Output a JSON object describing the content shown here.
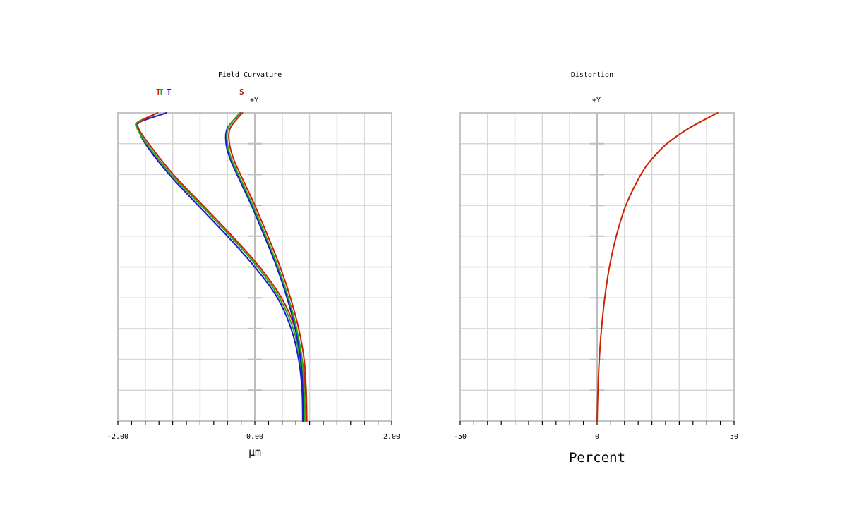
{
  "chart_data": [
    {
      "type": "line",
      "title": "Field Curvature",
      "xlabel": "µm",
      "ylabel": "+Y",
      "xlim": [
        -2.0,
        2.0
      ],
      "ylim": [
        0,
        1
      ],
      "x_tick_labels": [
        "-2.00",
        "0.00",
        "2.00"
      ],
      "grid": true,
      "legend": {
        "position": "top",
        "entries": [
          {
            "label": "T",
            "color": "#cc2200"
          },
          {
            "label": "T",
            "color": "#22aa22"
          },
          {
            "label": "T",
            "color": "#1a1acc"
          },
          {
            "label": "S",
            "color": "#aa1111"
          }
        ]
      },
      "series": [
        {
          "color": "#1a1acc",
          "y": [
            0,
            0.1,
            0.2,
            0.3,
            0.4,
            0.5,
            0.6,
            0.7,
            0.8,
            0.9,
            0.95,
            0.97,
            1.0
          ],
          "x": [
            0.7,
            0.69,
            0.64,
            0.53,
            0.33,
            0.0,
            -0.4,
            -0.83,
            -1.25,
            -1.6,
            -1.7,
            -1.68,
            -1.29
          ]
        },
        {
          "color": "#22aa22",
          "y": [
            0,
            0.1,
            0.2,
            0.3,
            0.4,
            0.5,
            0.6,
            0.7,
            0.8,
            0.9,
            0.95,
            0.97,
            1.0
          ],
          "x": [
            0.72,
            0.71,
            0.66,
            0.56,
            0.36,
            0.04,
            -0.36,
            -0.79,
            -1.22,
            -1.58,
            -1.72,
            -1.71,
            -1.42
          ]
        },
        {
          "color": "#cc2200",
          "y": [
            0,
            0.1,
            0.2,
            0.3,
            0.4,
            0.5,
            0.6,
            0.7,
            0.8,
            0.9,
            0.95,
            0.97,
            1.0
          ],
          "x": [
            0.75,
            0.74,
            0.69,
            0.59,
            0.39,
            0.07,
            -0.33,
            -0.76,
            -1.19,
            -1.55,
            -1.7,
            -1.68,
            -1.42
          ]
        },
        {
          "color": "#1a1acc",
          "y": [
            0,
            0.1,
            0.2,
            0.3,
            0.4,
            0.5,
            0.6,
            0.7,
            0.8,
            0.85,
            0.9,
            0.95,
            1.0
          ],
          "x": [
            0.71,
            0.7,
            0.67,
            0.59,
            0.47,
            0.32,
            0.14,
            -0.05,
            -0.26,
            -0.36,
            -0.42,
            -0.4,
            -0.21
          ]
        },
        {
          "color": "#22aa22",
          "y": [
            0,
            0.1,
            0.2,
            0.3,
            0.4,
            0.5,
            0.6,
            0.7,
            0.8,
            0.85,
            0.9,
            0.95,
            1.0
          ],
          "x": [
            0.73,
            0.72,
            0.69,
            0.61,
            0.49,
            0.34,
            0.16,
            -0.03,
            -0.24,
            -0.34,
            -0.4,
            -0.39,
            -0.22
          ]
        },
        {
          "color": "#cc2200",
          "y": [
            0,
            0.1,
            0.2,
            0.3,
            0.4,
            0.5,
            0.6,
            0.7,
            0.8,
            0.85,
            0.9,
            0.95,
            1.0
          ],
          "x": [
            0.76,
            0.75,
            0.72,
            0.64,
            0.52,
            0.37,
            0.19,
            0.0,
            -0.21,
            -0.31,
            -0.37,
            -0.36,
            -0.18
          ]
        }
      ]
    },
    {
      "type": "line",
      "title": "Distortion",
      "xlabel": "Percent",
      "ylabel": "+Y",
      "xlim": [
        -50,
        50
      ],
      "ylim": [
        0,
        1
      ],
      "x_tick_labels": [
        "-50",
        "0",
        "50"
      ],
      "grid": true,
      "series": [
        {
          "color": "#cc2200",
          "y": [
            0,
            0.1,
            0.2,
            0.3,
            0.4,
            0.5,
            0.6,
            0.7,
            0.8,
            0.85,
            0.9,
            0.95,
            1.0
          ],
          "x": [
            0,
            0.3,
            0.8,
            1.6,
            2.8,
            4.5,
            7.0,
            10.5,
            16.0,
            20.0,
            25.5,
            33.5,
            44.0
          ]
        }
      ]
    }
  ]
}
